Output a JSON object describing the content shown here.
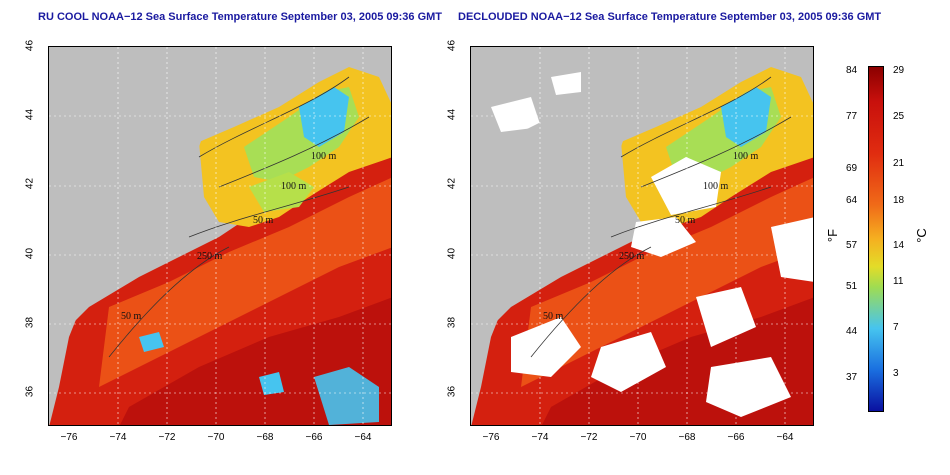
{
  "left_panel": {
    "title": "RU COOL NOAA−12 Sea Surface Temperature September 03, 2005 09:36 GMT"
  },
  "right_panel": {
    "title": "DECLOUDED NOAA−12 Sea Surface Temperature September 03, 2005 09:36 GMT"
  },
  "axes": {
    "x_ticks": [
      "−76",
      "−74",
      "−72",
      "−70",
      "−68",
      "−66",
      "−64"
    ],
    "y_ticks": [
      "46",
      "44",
      "42",
      "40",
      "38",
      "36"
    ]
  },
  "contour_labels": {
    "left": [
      "100 m",
      "100 m",
      "50 m",
      "250 m",
      "50 m"
    ],
    "right": [
      "100 m",
      "100 m",
      "50 m",
      "250 m",
      "50 m"
    ]
  },
  "colorbar": {
    "fahrenheit_ticks": [
      "84",
      "77",
      "69",
      "64",
      "57",
      "51",
      "44",
      "37"
    ],
    "celsius_ticks": [
      "29",
      "25",
      "21",
      "18",
      "14",
      "11",
      "7",
      "3"
    ],
    "unit_f": "°F",
    "unit_c": "°C"
  },
  "colors": {
    "land": "#bebebe",
    "cloud": "#ffffff",
    "warm": "#d4200f",
    "hot": "#b50e0b",
    "mid": "#ee5a18",
    "cool": "#f3c321",
    "cold": "#46c4ef",
    "title": "#1a1aa0"
  }
}
